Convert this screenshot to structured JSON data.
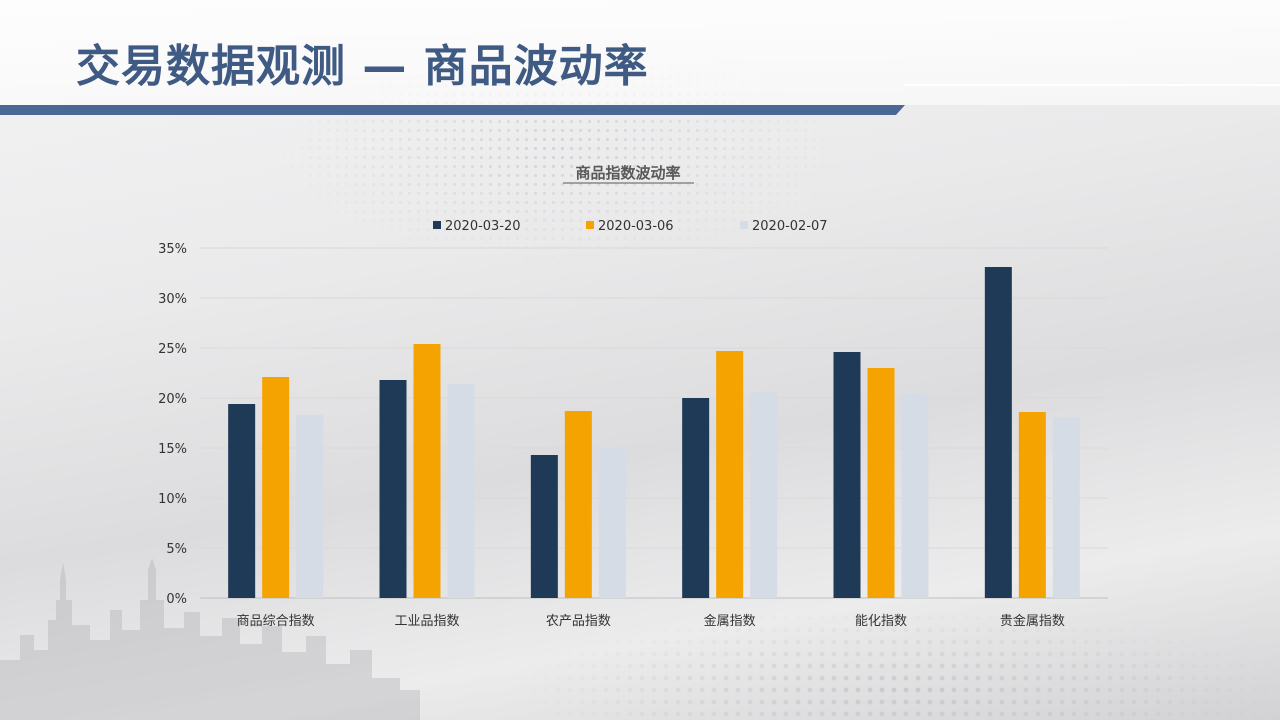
{
  "slide": {
    "title": "交易数据观测 — 商品波动率"
  },
  "colors": {
    "title": "#3f5a83",
    "title_bar": "#4b6794"
  },
  "chart_data": {
    "type": "bar",
    "title": "商品指数波动率",
    "categories": [
      "商品综合指数",
      "工业品指数",
      "农产品指数",
      "金属指数",
      "能化指数",
      "贵金属指数"
    ],
    "series": [
      {
        "name": "2020-03-20",
        "color": "#1f3a56",
        "values": [
          19.4,
          21.8,
          14.3,
          20.0,
          24.6,
          33.1
        ]
      },
      {
        "name": "2020-03-06",
        "color": "#f5a300",
        "values": [
          22.1,
          25.4,
          18.7,
          24.7,
          23.0,
          18.6
        ]
      },
      {
        "name": "2020-02-07",
        "color": "#d6dce5",
        "values": [
          18.3,
          21.4,
          15.1,
          20.6,
          20.4,
          18.1
        ]
      }
    ],
    "ylim": [
      0,
      35
    ],
    "yticks": [
      "0%",
      "5%",
      "10%",
      "15%",
      "20%",
      "25%",
      "30%",
      "35%"
    ],
    "grid": true,
    "legend": "top-center"
  }
}
